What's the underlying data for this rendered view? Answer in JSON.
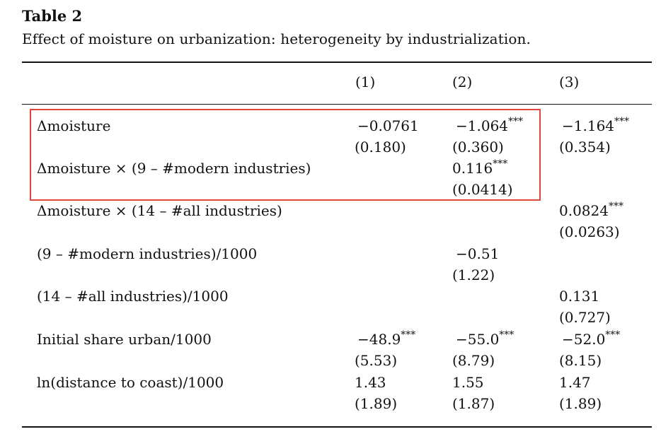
{
  "table_label": "Table 2",
  "caption": "Effect of moisture on urbanization: heterogeneity by industrialization.",
  "columns": [
    "(1)",
    "(2)",
    "(3)"
  ],
  "rows": [
    {
      "label": "Δmoisture",
      "c1": {
        "est": "−0.0761",
        "stars": "",
        "se": "(0.180)"
      },
      "c2": {
        "est": "−1.064",
        "stars": "***",
        "se": "(0.360)"
      },
      "c3": {
        "est": "−1.164",
        "stars": "***",
        "se": "(0.354)"
      }
    },
    {
      "label": "Δmoisture × (9 – #modern industries)",
      "c2": {
        "est": "0.116",
        "stars": "***",
        "se": "(0.0414)"
      }
    },
    {
      "label": "Δmoisture × (14 – #all industries)",
      "c3": {
        "est": "0.0824",
        "stars": "***",
        "se": "(0.0263)"
      }
    },
    {
      "label": "(9 – #modern industries)/1000",
      "c2": {
        "est": "−0.51",
        "stars": "",
        "se": "(1.22)"
      }
    },
    {
      "label": "(14 – #all industries)/1000",
      "c3": {
        "est": "0.131",
        "stars": "",
        "se": "(0.727)"
      }
    },
    {
      "label": "Initial share urban/1000",
      "c1": {
        "est": "−48.9",
        "stars": "***",
        "se": "(5.53)"
      },
      "c2": {
        "est": "−55.0",
        "stars": "***",
        "se": "(8.79)"
      },
      "c3": {
        "est": "−52.0",
        "stars": "***",
        "se": "(8.15)"
      }
    },
    {
      "label": "ln(distance to coast)/1000",
      "c1": {
        "est": "1.43",
        "stars": "",
        "se": "(1.89)"
      },
      "c2": {
        "est": "1.55",
        "stars": "",
        "se": "(1.87)"
      },
      "c3": {
        "est": "1.47",
        "stars": "",
        "se": "(1.89)"
      }
    }
  ],
  "highlight_color": "#e2453a"
}
